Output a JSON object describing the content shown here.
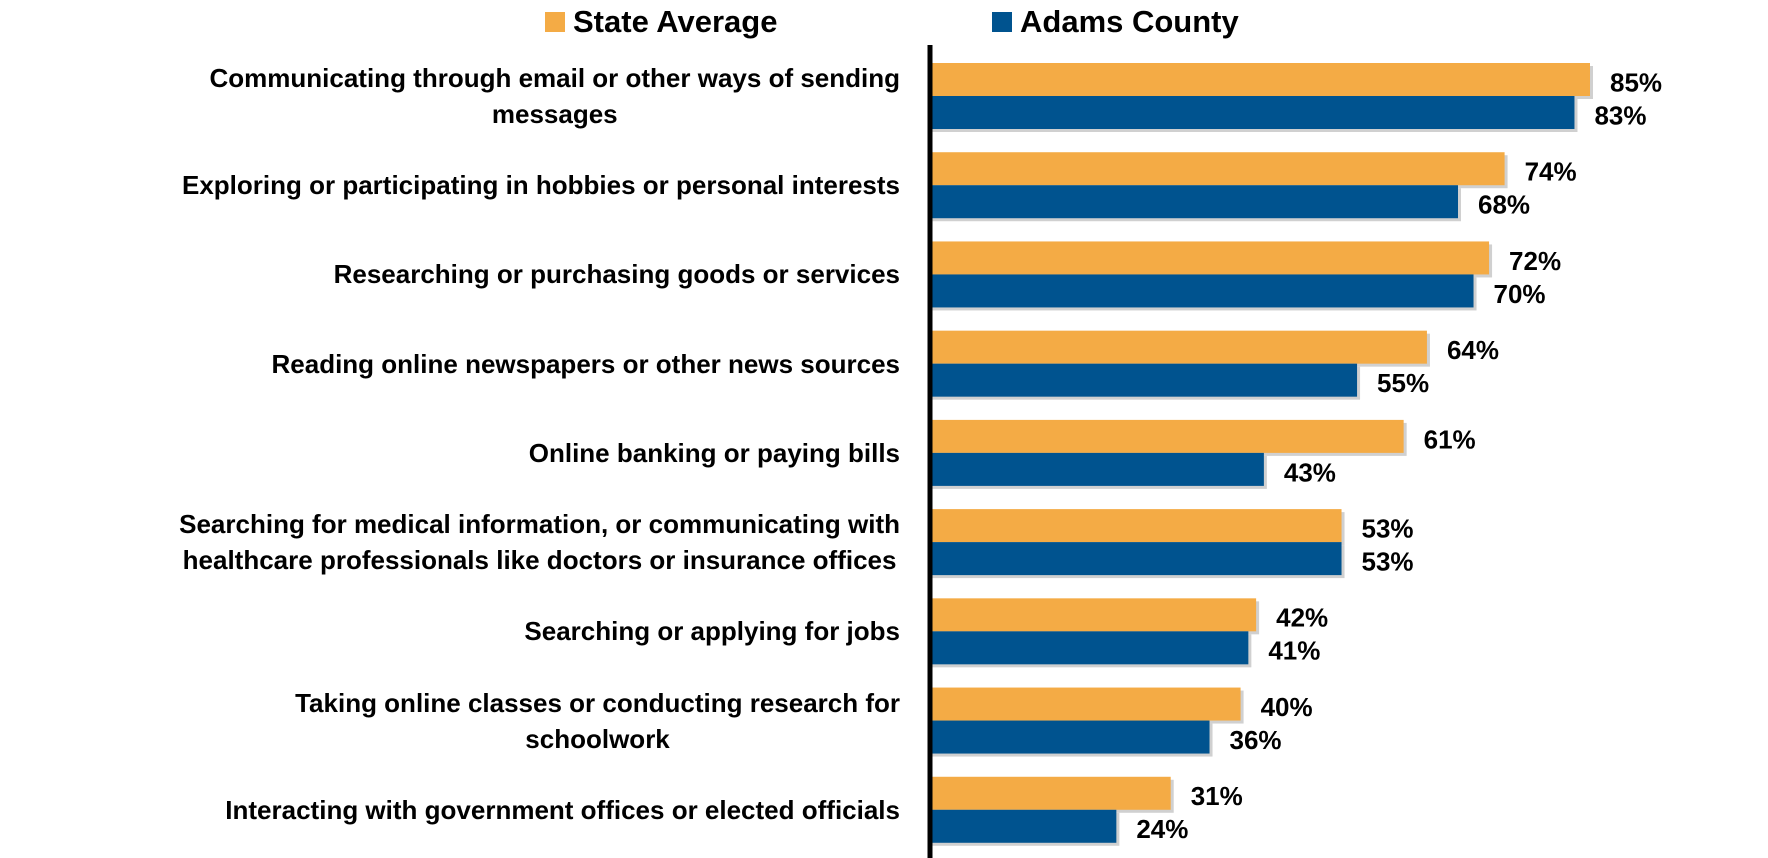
{
  "chart_data": {
    "type": "barh",
    "categories": [
      "Communicating through email or other ways of sending\nmessages",
      "Exploring or participating in hobbies or personal interests",
      "Researching or purchasing goods or services",
      "Reading online newspapers or other news sources",
      "Online banking or paying bills",
      "Searching for medical information, or communicating with\nhealthcare professionals like doctors or insurance offices",
      "Searching or applying for jobs",
      "Taking online classes or conducting research for\nschoolwork",
      "Interacting with government offices or elected officials"
    ],
    "series": [
      {
        "name": "State Average",
        "color": "#f4ab45",
        "values": [
          85,
          74,
          72,
          64,
          61,
          53,
          42,
          40,
          31
        ],
        "value_labels": [
          "85%",
          "74%",
          "72%",
          "64%",
          "61%",
          "53%",
          "42%",
          "40%",
          "31%"
        ]
      },
      {
        "name": "Adams County",
        "color": "#00538f",
        "values": [
          83,
          68,
          70,
          55,
          43,
          53,
          41,
          36,
          24
        ],
        "value_labels": [
          "83%",
          "68%",
          "70%",
          "55%",
          "43%",
          "53%",
          "41%",
          "36%",
          "24%"
        ]
      }
    ]
  }
}
